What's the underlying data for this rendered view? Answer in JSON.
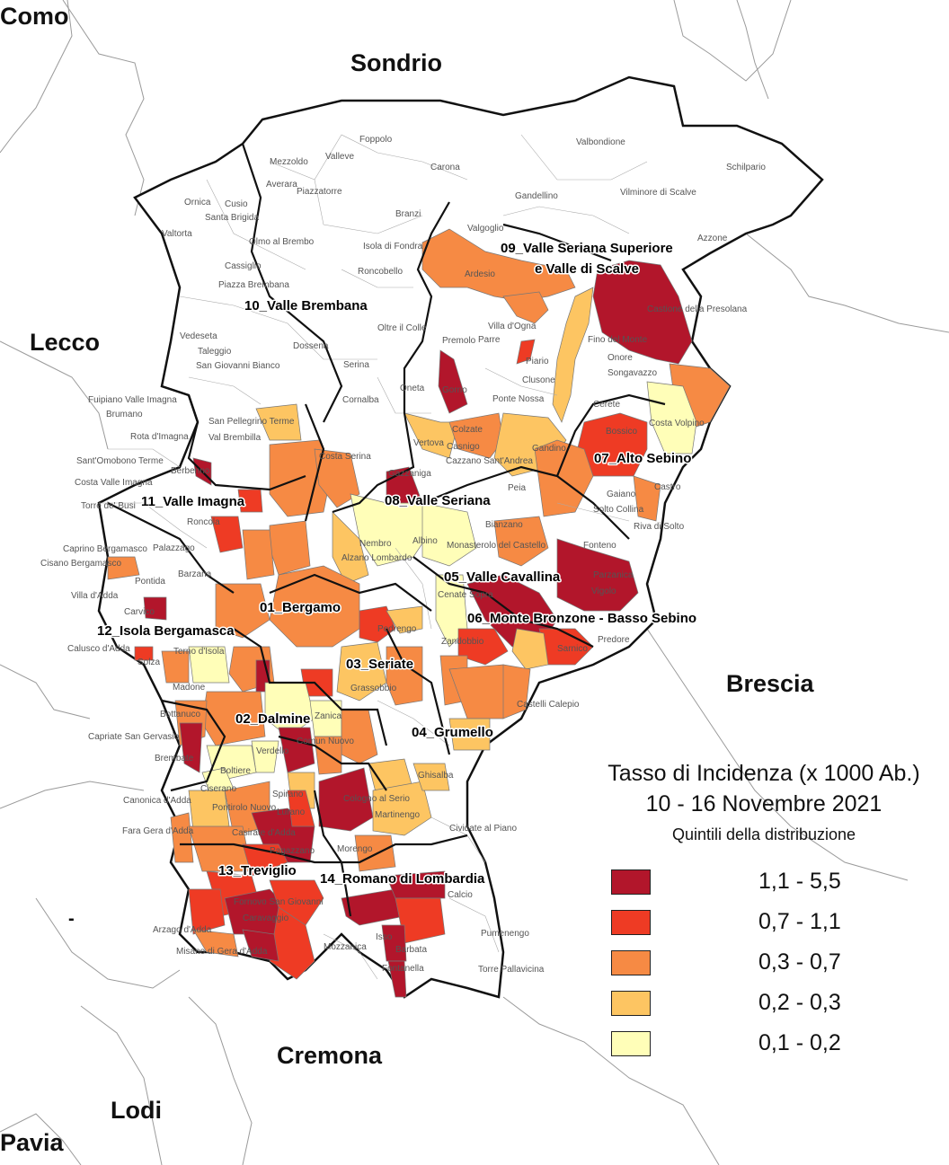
{
  "legend": {
    "title": "Tasso di Incidenza (x 1000 Ab.)",
    "date": "10 - 16 Novembre 2021",
    "subtitle": "Quintili della distribuzione",
    "classes": [
      {
        "range": "1,1 - 5,5",
        "color": "#b2162b"
      },
      {
        "range": "0,7 - 1,1",
        "color": "#ee3b24"
      },
      {
        "range": "0,3 - 0,7",
        "color": "#f68a44"
      },
      {
        "range": "0,2 - 0,3",
        "color": "#fdc562"
      },
      {
        "range": "0,1 - 0,2",
        "color": "#fffeb8"
      }
    ]
  },
  "provinces": {
    "como": "Como",
    "sondrio": "Sondrio",
    "lecco": "Lecco",
    "brescia": "Brescia",
    "cremona": "Cremona",
    "lodi": "Lodi",
    "pavia": "Pavia"
  },
  "districts": {
    "d01": "01_Bergamo",
    "d02": "02_Dalmine",
    "d03": "03_Seriate",
    "d04": "04_Grumello",
    "d05": "05_Valle Cavallina",
    "d06": "06_Monte Bronzone - Basso Sebino",
    "d07": "07_Alto Sebino",
    "d08": "08_Valle Seriana",
    "d09a": "09_Valle Seriana Superiore",
    "d09b": "e Valle di Scalve",
    "d10": "10_Valle Brembana",
    "d11": "11_Valle Imagna",
    "d12": "12_Isola Bergamasca",
    "d13": "13_Treviglio",
    "d14": "14_Romano di Lombardia"
  },
  "municipalities": {
    "foppolo": "Foppolo",
    "valbondione": "Valbondione",
    "schilpario": "Schilpario",
    "valleve": "Valleve",
    "mezzoldo": "Mezzoldo",
    "carona": "Carona",
    "averara": "Averara",
    "piazzatorre": "Piazzatorre",
    "gandellino": "Gandellino",
    "vilminore": "Vilminore di Scalve",
    "ornica": "Ornica",
    "cusio": "Cusio",
    "santabrigida": "Santa Brigida",
    "branzi": "Branzi",
    "valtorta": "Valtorta",
    "valgoglio": "Valgoglio",
    "azzone": "Azzone",
    "olmo": "Olmo al Brembo",
    "isola": "Isola di Fondra",
    "cassiglio": "Cassiglio",
    "roncobello": "Roncobello",
    "piazzabrembana": "Piazza Brembana",
    "ardesio": "Ardesio",
    "villadogna": "Villa d'Ogna",
    "castione": "Castione della Presolana",
    "oltreilcolle": "Oltre il Colle",
    "vedeseta": "Vedeseta",
    "taleggio": "Taleggio",
    "dossena": "Dossena",
    "premolo": "Premolo",
    "parre": "Parre",
    "fino": "Fino del Monte",
    "rovetta": "Rovetta",
    "sangiovanni": "San Giovanni Bianco",
    "serina": "Serina",
    "piario": "Piario",
    "onore": "Onore",
    "songavazzo": "Songavazzo",
    "clusone": "Clusone",
    "oneta": "Oneta",
    "gorno": "Gorno",
    "pontenossa": "Ponte Nossa",
    "fuipiano": "Fuipiano Valle Imagna",
    "bremano": "Brumano",
    "corna": "Cornalba",
    "cerete": "Cerete",
    "costavolpino": "Costa Volpino",
    "sanpellegrino": "San Pellegrino Terme",
    "rotadimagna": "Rota d'Imagna",
    "valbrembilla": "Val Brembilla",
    "vertova": "Vertova",
    "colzate": "Colzate",
    "casnigo": "Casnigo",
    "gandino": "Gandino",
    "bossico": "Bossico",
    "santomobono": "Sant'Omobono Terme",
    "berbenno": "Berbenno",
    "costaserina": "Costa Serina",
    "cazzano": "Cazzano Sant'Andrea",
    "costavalle": "Costa Valle Imagna",
    "gazzaniga": "Gazzaniga",
    "castro": "Castro",
    "torre": "Torre de' Busi",
    "peia": "Peia",
    "gaiano": "Gaiano",
    "sotto": "Solto Collina",
    "ronzola": "Roncola",
    "biancano": "Bianzano",
    "rivadisolto": "Riva di Solto",
    "caprino": "Caprino Bergamasco",
    "palazzago": "Palazzago",
    "nembro": "Nembro",
    "albino": "Albino",
    "monasterolo": "Monasterolo del Castello",
    "fonteno": "Fonteno",
    "cisano": "Cisano Bergamasco",
    "pontida": "Pontida",
    "barzana": "Barzana",
    "albanolombardo": "Alzano Lombardo",
    "parzanica": "Parzanica",
    "villadadda": "Villa d'Adda",
    "vigolo": "Vigolo",
    "carvico": "Carvico",
    "cenate": "Cenate Sopra",
    "pedrengo": "Pedrengo",
    "predore": "Predore",
    "calusco": "Calusco d'Adda",
    "terno": "Terno d'Isola",
    "zandobbio": "Zandobbio",
    "sarnico": "Sarnico",
    "solza": "Solza",
    "madone": "Madone",
    "grassobbio": "Grassobbio",
    "castellicalepio": "Castelli Calepio",
    "bottanuco": "Bottanuco",
    "zanica": "Zanica",
    "capriate": "Capriate San Gervasio",
    "comun": "Comun Nuovo",
    "brembate": "Brembate",
    "verdello": "Verdello",
    "boltiere": "Boltiere",
    "ghisalba": "Ghisalba",
    "canonica": "Canonica d'Adda",
    "ciserano": "Ciserano",
    "spirano": "Spirano",
    "cologno": "Cologno al Serio",
    "pontirolo": "Pontirolo Nuovo",
    "lurano": "Lurano",
    "martinengo": "Martinengo",
    "faragera": "Fara Gera d'Adda",
    "casirate": "Casirate d'Adda",
    "cividate": "Cividate al Piano",
    "pagazzano": "Pagazzano",
    "morengo": "Morengo",
    "fornovo": "Fornovo San Giovanni",
    "calcio": "Calcio",
    "arzago": "Arzago d'Adda",
    "caravaggio": "Caravaggio",
    "pumenengo": "Pumenengo",
    "misano": "Misano di Gera d'Adda",
    "mozzanica": "Mozzanica",
    "isso": "Isso",
    "barbata": "Barbata",
    "torrepallavicina": "Torre Pallavicina",
    "fontanella": "Fontanella"
  }
}
